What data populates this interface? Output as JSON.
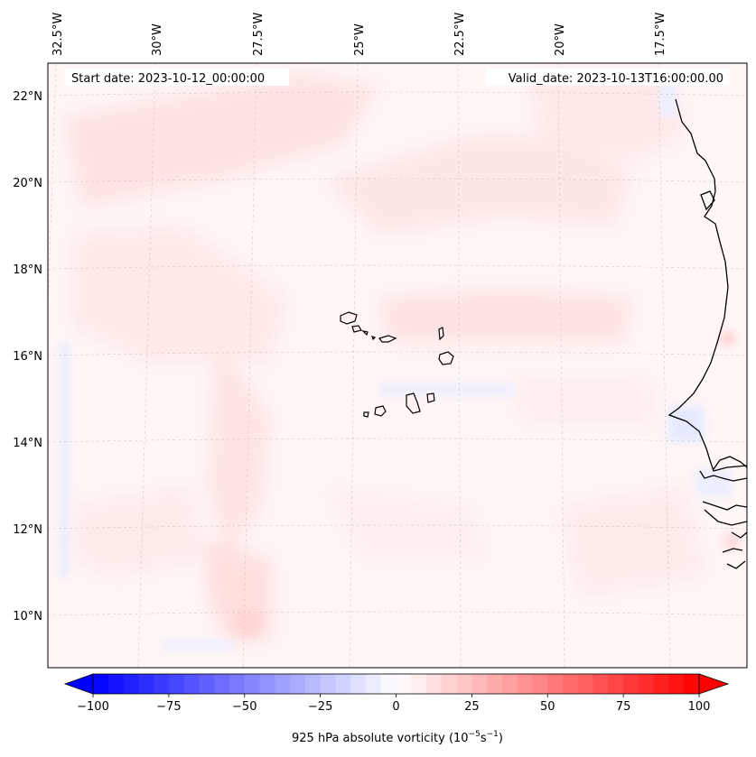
{
  "map": {
    "start_label": "Start date: 2023-10-12_00:00:00",
    "valid_label": "Valid_date: 2023-10-13T16:00:00.00",
    "lon_labels": [
      "32.5°W",
      "30°W",
      "27.5°W",
      "25°W",
      "22.5°W",
      "20°W",
      "17.5°W"
    ],
    "lat_labels": [
      "22°N",
      "20°N",
      "18°N",
      "16°N",
      "14°N",
      "12°N",
      "10°N"
    ]
  },
  "colorbar": {
    "label": "925 hPa absolute vorticity (10",
    "label_exp1": "−5",
    "label_mid": "s",
    "label_exp2": "−1",
    "label_end": ")",
    "min": -100,
    "max": 100,
    "ticks": [
      "−100",
      "−75",
      "−50",
      "−25",
      "0",
      "25",
      "50",
      "75",
      "100"
    ],
    "low_color": "#0000ff",
    "mid_color": "#ffffff",
    "high_color": "#ff0000"
  }
}
